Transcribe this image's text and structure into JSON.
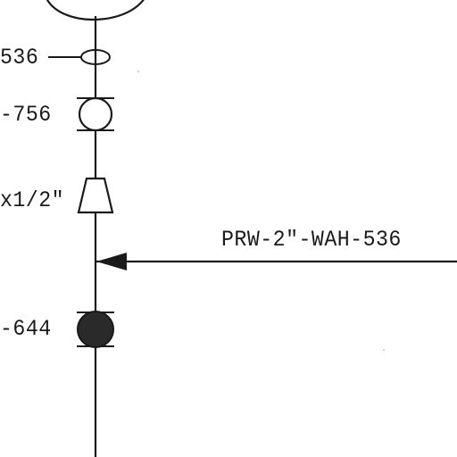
{
  "labels": {
    "tag_536": "536",
    "tag_756": "-756",
    "reducer": "x1/2\"",
    "line_spec": "PRW-2\"-WAH-536",
    "tag_644": "-644"
  },
  "colors": {
    "ink": "#1a1a1a",
    "background": "#ffffff"
  }
}
